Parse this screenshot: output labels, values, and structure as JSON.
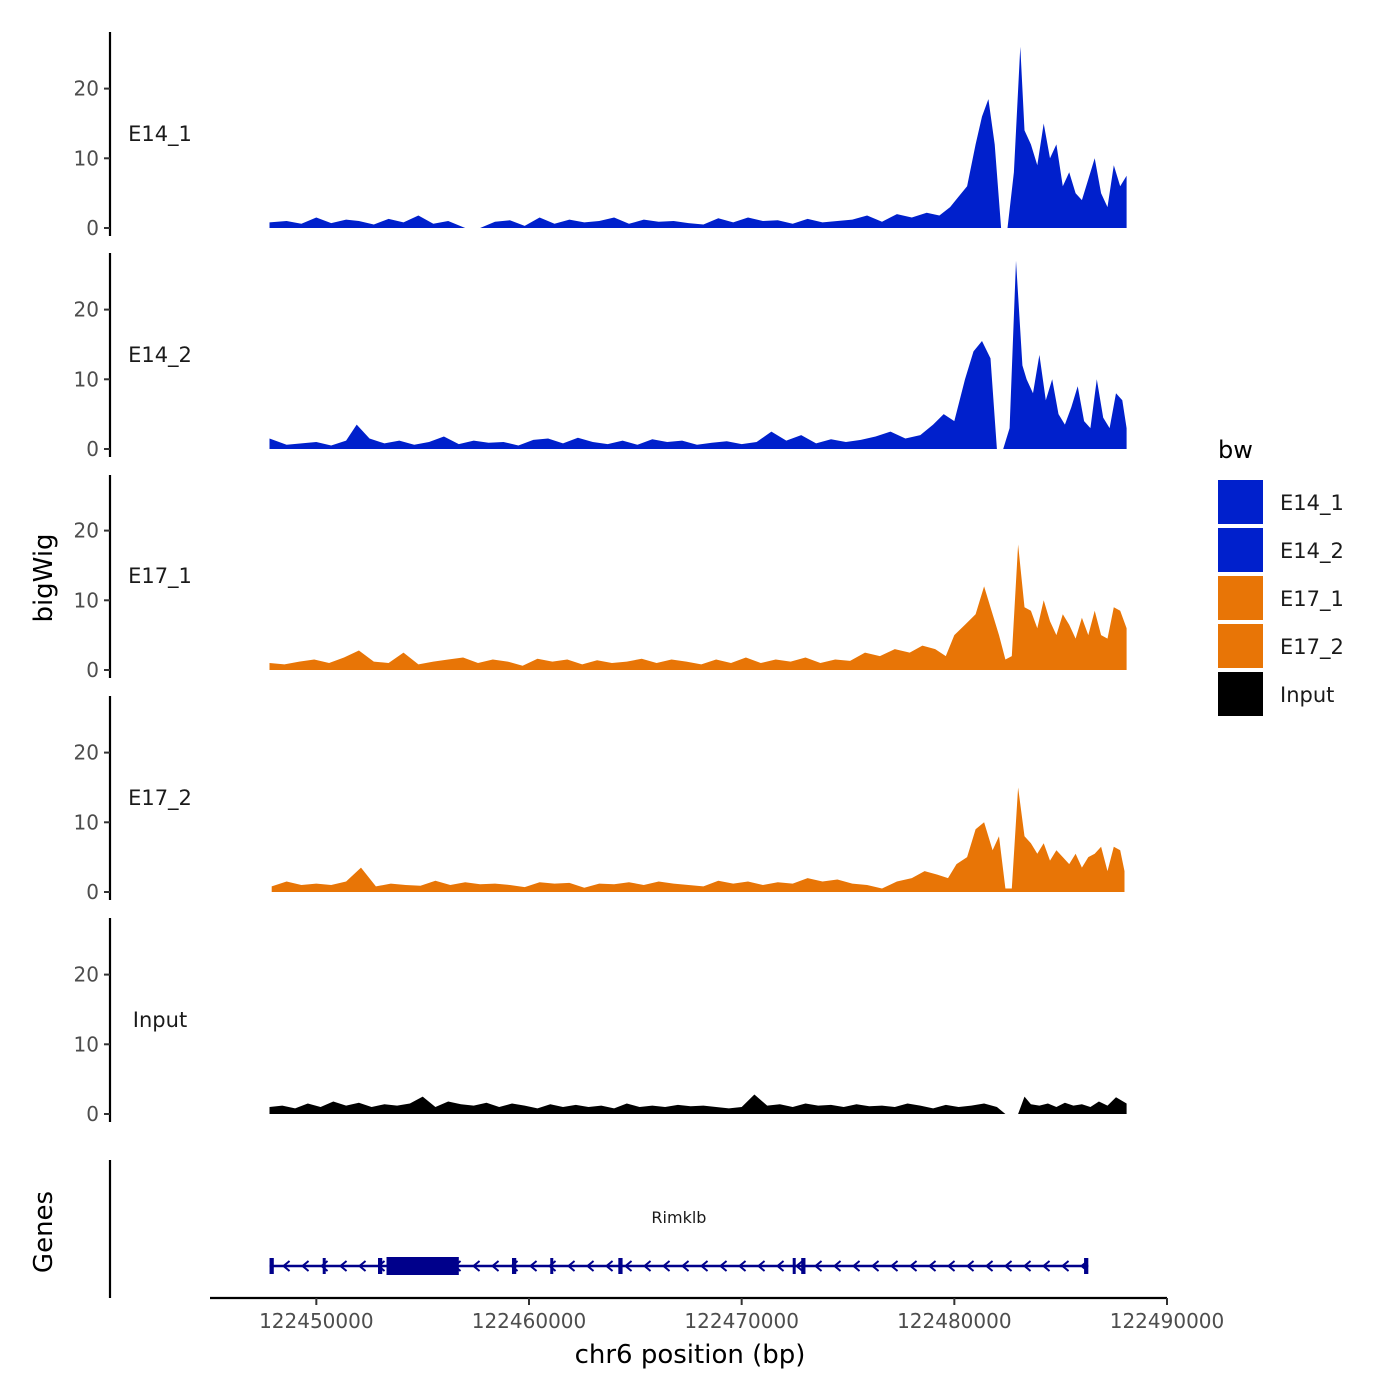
{
  "chart_data": {
    "type": "area",
    "chromosome": "chr6",
    "xlabel": "chr6 position (bp)",
    "ylabel": "bigWig",
    "genes_label": "Genes",
    "xlim": [
      122445000,
      122490000
    ],
    "x_ticks": [
      122450000,
      122460000,
      122470000,
      122480000,
      122490000
    ],
    "x_tick_labels": [
      "122450000",
      "122460000",
      "122470000",
      "122480000",
      "122490000"
    ],
    "ylim": [
      0,
      28
    ],
    "y_ticks": [
      0,
      10,
      20
    ],
    "y_tick_labels": [
      "0",
      "10",
      "20"
    ],
    "legend": {
      "title": "bw",
      "entries": [
        {
          "label": "E14_1",
          "color": "#0020CC"
        },
        {
          "label": "E14_2",
          "color": "#0020CC"
        },
        {
          "label": "E17_1",
          "color": "#E87506"
        },
        {
          "label": "E17_2",
          "color": "#E87506"
        },
        {
          "label": "Input",
          "color": "#000000"
        }
      ]
    },
    "series": [
      {
        "name": "E14_1",
        "color": "#0020CC",
        "x": [
          122447800,
          122448600,
          122449300,
          122450000,
          122450700,
          122451400,
          122452000,
          122452700,
          122453400,
          122454100,
          122454800,
          122455500,
          122456200,
          122457000,
          122457700,
          122458400,
          122459100,
          122459800,
          122460500,
          122461200,
          122461900,
          122462600,
          122463300,
          122464000,
          122464700,
          122465400,
          122466100,
          122466800,
          122467500,
          122468200,
          122468900,
          122469600,
          122470300,
          122471000,
          122471700,
          122472400,
          122473100,
          122473800,
          122474500,
          122475200,
          122475900,
          122476600,
          122477300,
          122478000,
          122478700,
          122479300,
          122479800,
          122480200,
          122480600,
          122481000,
          122481300,
          122481600,
          122481900,
          122482200,
          122482500,
          122482800,
          122483100,
          122483300,
          122483600,
          122483900,
          122484200,
          122484500,
          122484800,
          122485100,
          122485400,
          122485700,
          122486000,
          122486300,
          122486600,
          122486900,
          122487200,
          122487500,
          122487800,
          122488100
        ],
        "values": [
          0.8,
          1.0,
          0.6,
          1.5,
          0.7,
          1.2,
          1.0,
          0.5,
          1.3,
          0.8,
          1.8,
          0.6,
          1.0,
          0.0,
          0.0,
          0.9,
          1.1,
          0.3,
          1.5,
          0.6,
          1.2,
          0.8,
          1.0,
          1.5,
          0.6,
          1.2,
          0.9,
          1.0,
          0.7,
          0.5,
          1.4,
          0.8,
          1.5,
          1.0,
          1.1,
          0.6,
          1.3,
          0.8,
          1.0,
          1.2,
          1.8,
          0.9,
          2.0,
          1.5,
          2.2,
          1.8,
          3.0,
          4.5,
          6.0,
          12.0,
          16.0,
          18.5,
          12.0,
          0.0,
          0.0,
          8.0,
          26.0,
          14.0,
          12.0,
          9.0,
          15.0,
          10.0,
          12.0,
          6.0,
          8.0,
          5.0,
          4.0,
          7.0,
          10.0,
          5.0,
          3.0,
          9.0,
          6.0,
          7.5
        ]
      },
      {
        "name": "E14_2",
        "color": "#0020CC",
        "x": [
          122447800,
          122448600,
          122449300,
          122450000,
          122450700,
          122451400,
          122451900,
          122452500,
          122453200,
          122453900,
          122454600,
          122455300,
          122456000,
          122456700,
          122457400,
          122458100,
          122458800,
          122459500,
          122460200,
          122460900,
          122461600,
          122462300,
          122463000,
          122463700,
          122464400,
          122465100,
          122465800,
          122466500,
          122467200,
          122467900,
          122468600,
          122469300,
          122470000,
          122470700,
          122471400,
          122472100,
          122472800,
          122473500,
          122474200,
          122474900,
          122475600,
          122476300,
          122477000,
          122477700,
          122478400,
          122479000,
          122479500,
          122480000,
          122480500,
          122480900,
          122481300,
          122481700,
          122482000,
          122482300,
          122482600,
          122482900,
          122483200,
          122483400,
          122483700,
          122484000,
          122484300,
          122484600,
          122484900,
          122485200,
          122485500,
          122485800,
          122486100,
          122486400,
          122486700,
          122487000,
          122487300,
          122487600,
          122487900,
          122488100
        ],
        "values": [
          1.5,
          0.6,
          0.8,
          1.0,
          0.5,
          1.2,
          3.5,
          1.5,
          0.8,
          1.2,
          0.6,
          1.0,
          1.8,
          0.7,
          1.2,
          0.9,
          1.0,
          0.5,
          1.3,
          1.5,
          0.8,
          1.6,
          1.0,
          0.7,
          1.2,
          0.6,
          1.4,
          1.0,
          1.2,
          0.6,
          0.9,
          1.1,
          0.7,
          1.0,
          2.5,
          1.2,
          2.0,
          0.8,
          1.4,
          1.0,
          1.3,
          1.8,
          2.5,
          1.5,
          2.0,
          3.5,
          5.0,
          4.0,
          10.0,
          14.0,
          15.5,
          13.0,
          0.0,
          0.0,
          3.0,
          27.0,
          12.0,
          10.0,
          8.0,
          13.5,
          7.0,
          10.0,
          5.0,
          3.5,
          6.0,
          9.0,
          4.0,
          3.0,
          10.0,
          4.5,
          3.0,
          8.0,
          7.0,
          3.0
        ]
      },
      {
        "name": "E17_1",
        "color": "#E87506",
        "x": [
          122447800,
          122448500,
          122449200,
          122449900,
          122450600,
          122451300,
          122452000,
          122452700,
          122453400,
          122454100,
          122454800,
          122455500,
          122456200,
          122456900,
          122457600,
          122458300,
          122459000,
          122459700,
          122460400,
          122461100,
          122461800,
          122462500,
          122463200,
          122463900,
          122464600,
          122465300,
          122466000,
          122466700,
          122467400,
          122468100,
          122468800,
          122469500,
          122470200,
          122470900,
          122471600,
          122472300,
          122473000,
          122473700,
          122474400,
          122475100,
          122475800,
          122476500,
          122477200,
          122477900,
          122478500,
          122479100,
          122479600,
          122480000,
          122480500,
          122481000,
          122481400,
          122481800,
          122482100,
          122482400,
          122482700,
          122483000,
          122483300,
          122483600,
          122483900,
          122484200,
          122484500,
          122484800,
          122485100,
          122485400,
          122485700,
          122486000,
          122486300,
          122486600,
          122486900,
          122487200,
          122487500,
          122487800,
          122488100
        ],
        "values": [
          1.0,
          0.8,
          1.2,
          1.5,
          1.0,
          1.8,
          2.8,
          1.2,
          1.0,
          2.5,
          0.8,
          1.2,
          1.5,
          1.8,
          1.0,
          1.5,
          1.2,
          0.6,
          1.6,
          1.2,
          1.5,
          0.8,
          1.4,
          1.0,
          1.2,
          1.6,
          1.0,
          1.5,
          1.2,
          0.8,
          1.5,
          1.0,
          1.8,
          1.0,
          1.5,
          1.2,
          1.8,
          1.0,
          1.5,
          1.3,
          2.5,
          2.0,
          3.0,
          2.5,
          3.5,
          3.0,
          2.0,
          5.0,
          6.5,
          8.0,
          12.0,
          8.0,
          5.0,
          1.5,
          2.0,
          18.0,
          9.0,
          8.5,
          6.0,
          10.0,
          7.0,
          5.0,
          8.0,
          6.5,
          4.5,
          7.5,
          5.0,
          8.5,
          5.0,
          4.5,
          9.0,
          8.5,
          6.0
        ]
      },
      {
        "name": "E17_2",
        "color": "#E87506",
        "x": [
          122447900,
          122448600,
          122449300,
          122450000,
          122450700,
          122451400,
          122452100,
          122452800,
          122453500,
          122454200,
          122454900,
          122455600,
          122456300,
          122457000,
          122457700,
          122458400,
          122459100,
          122459800,
          122460500,
          122461200,
          122461900,
          122462600,
          122463300,
          122464000,
          122464700,
          122465400,
          122466100,
          122466800,
          122467500,
          122468200,
          122468900,
          122469600,
          122470300,
          122471000,
          122471700,
          122472400,
          122473100,
          122473800,
          122474500,
          122475200,
          122475900,
          122476600,
          122477300,
          122478000,
          122478600,
          122479200,
          122479700,
          122480100,
          122480600,
          122481000,
          122481400,
          122481800,
          122482100,
          122482400,
          122482700,
          122483000,
          122483300,
          122483600,
          122483900,
          122484200,
          122484500,
          122484800,
          122485100,
          122485400,
          122485700,
          122486000,
          122486300,
          122486600,
          122486900,
          122487200,
          122487500,
          122487800,
          122488000
        ],
        "values": [
          0.8,
          1.5,
          1.0,
          1.2,
          1.0,
          1.5,
          3.5,
          0.8,
          1.2,
          1.0,
          0.9,
          1.6,
          1.0,
          1.4,
          1.1,
          1.2,
          1.0,
          0.7,
          1.4,
          1.2,
          1.3,
          0.6,
          1.2,
          1.1,
          1.4,
          1.0,
          1.5,
          1.2,
          1.0,
          0.8,
          1.6,
          1.2,
          1.5,
          1.0,
          1.4,
          1.2,
          2.0,
          1.5,
          1.8,
          1.2,
          1.0,
          0.5,
          1.5,
          2.0,
          3.0,
          2.5,
          2.0,
          4.0,
          5.0,
          9.0,
          10.0,
          6.0,
          8.0,
          0.5,
          0.5,
          15.0,
          8.0,
          7.0,
          5.5,
          7.0,
          4.5,
          6.0,
          5.0,
          4.0,
          5.5,
          3.5,
          5.0,
          5.5,
          6.5,
          3.0,
          6.5,
          6.0,
          3.0
        ]
      },
      {
        "name": "Input",
        "color": "#000000",
        "x": [
          122447800,
          122448400,
          122449000,
          122449600,
          122450200,
          122450800,
          122451400,
          122452000,
          122452600,
          122453200,
          122453800,
          122454400,
          122455000,
          122455600,
          122456200,
          122456800,
          122457400,
          122458000,
          122458600,
          122459200,
          122459800,
          122460400,
          122461000,
          122461600,
          122462200,
          122462800,
          122463400,
          122464000,
          122464600,
          122465200,
          122465800,
          122466400,
          122467000,
          122467600,
          122468200,
          122468800,
          122469400,
          122470000,
          122470600,
          122471200,
          122471800,
          122472400,
          122473000,
          122473600,
          122474200,
          122474800,
          122475400,
          122476000,
          122476600,
          122477200,
          122477800,
          122478400,
          122479000,
          122479600,
          122480200,
          122480800,
          122481400,
          122482000,
          122482400,
          122482700,
          122483000,
          122483300,
          122483600,
          122484000,
          122484400,
          122484800,
          122485200,
          122485600,
          122486000,
          122486400,
          122486800,
          122487200,
          122487600,
          122488100
        ],
        "values": [
          1.0,
          1.2,
          0.8,
          1.5,
          1.0,
          1.8,
          1.2,
          1.6,
          1.0,
          1.4,
          1.2,
          1.5,
          2.5,
          1.0,
          1.8,
          1.4,
          1.2,
          1.6,
          1.0,
          1.5,
          1.2,
          0.8,
          1.4,
          1.0,
          1.3,
          1.0,
          1.2,
          0.8,
          1.5,
          1.0,
          1.2,
          1.0,
          1.3,
          1.1,
          1.2,
          1.0,
          0.8,
          1.0,
          2.8,
          1.2,
          1.4,
          1.0,
          1.5,
          1.2,
          1.3,
          1.0,
          1.4,
          1.1,
          1.2,
          1.0,
          1.5,
          1.2,
          0.8,
          1.3,
          1.0,
          1.2,
          1.5,
          1.0,
          0.0,
          0.0,
          0.0,
          2.5,
          1.4,
          1.2,
          1.5,
          1.0,
          1.6,
          1.2,
          1.4,
          1.0,
          1.8,
          1.2,
          2.4,
          1.5
        ]
      }
    ],
    "genes": [
      {
        "name": "Rimklb",
        "start": 122447800,
        "end": 122486300,
        "strand": "-",
        "exons": [
          [
            122447800,
            122448000
          ],
          [
            122450300,
            122450400
          ],
          [
            122452900,
            122453100
          ],
          [
            122453300,
            122456700
          ],
          [
            122459200,
            122459400
          ],
          [
            122461000,
            122461100
          ],
          [
            122464200,
            122464400
          ],
          [
            122472400,
            122472500
          ],
          [
            122472800,
            122473000
          ],
          [
            122486100,
            122486300
          ]
        ]
      }
    ]
  }
}
